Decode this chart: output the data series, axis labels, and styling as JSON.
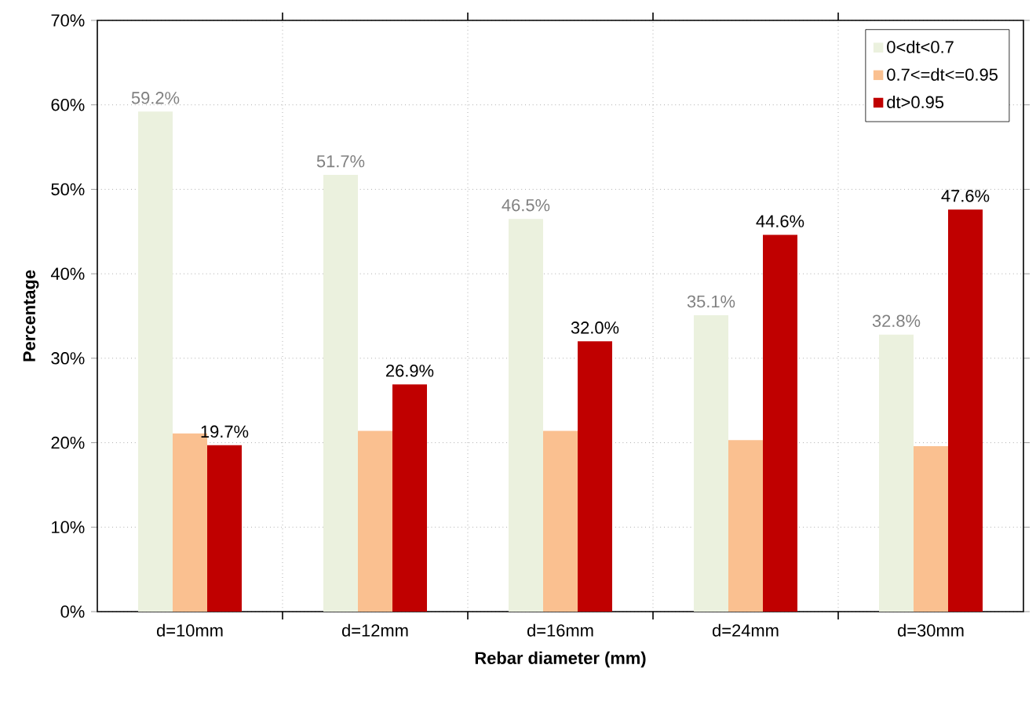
{
  "chart_data": {
    "type": "bar",
    "xlabel": "Rebar diameter (mm)",
    "ylabel": "Percentage",
    "categories": [
      "d=10mm",
      "d=12mm",
      "d=16mm",
      "d=24mm",
      "d=30mm"
    ],
    "series": [
      {
        "name": "0<dt<0.7",
        "color": "#ebf1de",
        "values": [
          59.2,
          51.7,
          46.5,
          35.1,
          32.8
        ],
        "value_labels": [
          "59.2%",
          "51.7%",
          "46.5%",
          "35.1%",
          "32.8%"
        ]
      },
      {
        "name": "0.7<=dt<=0.95",
        "color": "#fac090",
        "values": [
          21.1,
          21.4,
          21.4,
          20.3,
          19.6
        ]
      },
      {
        "name": "dt>0.95",
        "color": "#c00000",
        "values": [
          19.7,
          26.9,
          32.0,
          44.6,
          47.6
        ],
        "value_labels": [
          "19.7%",
          "26.9%",
          "32.0%",
          "44.6%",
          "47.6%"
        ]
      }
    ],
    "ylim": [
      0,
      70
    ],
    "yticks": [
      {
        "value": 0,
        "label": "0%"
      },
      {
        "value": 10,
        "label": "10%"
      },
      {
        "value": 20,
        "label": "20%"
      },
      {
        "value": 30,
        "label": "30%"
      },
      {
        "value": 40,
        "label": "40%"
      },
      {
        "value": 50,
        "label": "50%"
      },
      {
        "value": 60,
        "label": "60%"
      },
      {
        "value": 70,
        "label": "70%"
      }
    ],
    "grid": true,
    "legend": "top right"
  }
}
